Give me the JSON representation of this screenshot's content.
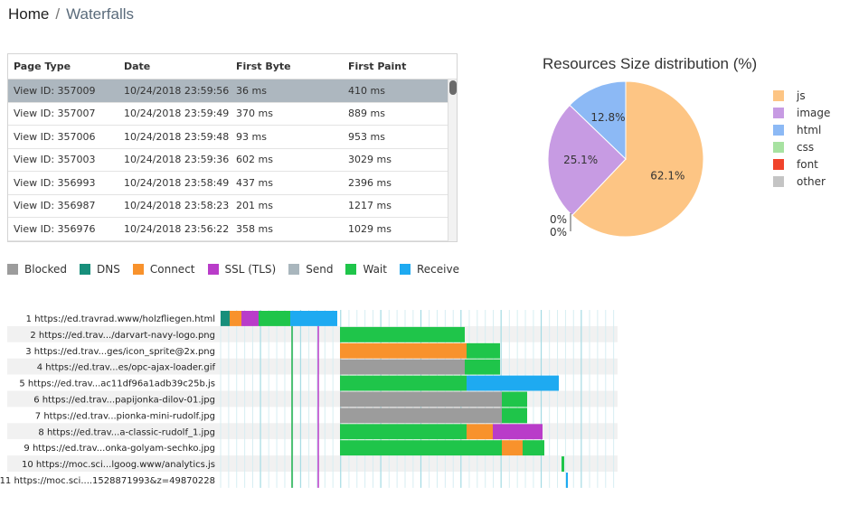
{
  "breadcrumb": {
    "home": "Home",
    "separator": "/",
    "current": "Waterfalls"
  },
  "table": {
    "headers": [
      "Page Type",
      "Date",
      "First Byte",
      "First Paint"
    ],
    "rows": [
      {
        "page": "View ID: 357009",
        "date": "10/24/2018 23:59:56",
        "first_byte": "36 ms",
        "first_paint": "410 ms",
        "selected": true
      },
      {
        "page": "View ID: 357007",
        "date": "10/24/2018 23:59:49",
        "first_byte": "370 ms",
        "first_paint": "889 ms"
      },
      {
        "page": "View ID: 357006",
        "date": "10/24/2018 23:59:48",
        "first_byte": "93 ms",
        "first_paint": "953 ms"
      },
      {
        "page": "View ID: 357003",
        "date": "10/24/2018 23:59:36",
        "first_byte": "602 ms",
        "first_paint": "3029 ms"
      },
      {
        "page": "View ID: 356993",
        "date": "10/24/2018 23:58:49",
        "first_byte": "437 ms",
        "first_paint": "2396 ms"
      },
      {
        "page": "View ID: 356987",
        "date": "10/24/2018 23:58:23",
        "first_byte": "201 ms",
        "first_paint": "1217 ms"
      },
      {
        "page": "View ID: 356976",
        "date": "10/24/2018 23:56:22",
        "first_byte": "358 ms",
        "first_paint": "1029 ms"
      }
    ]
  },
  "chart_data": [
    {
      "type": "pie",
      "title": "Resources Size distribution (%)",
      "legend_position": "right",
      "slices": [
        {
          "label": "js",
          "value": 62.1,
          "text": "62.1%",
          "color": "#fdc584"
        },
        {
          "label": "image",
          "value": 25.1,
          "text": "25.1%",
          "color": "#c79be3"
        },
        {
          "label": "html",
          "value": 12.8,
          "text": "12.8%",
          "color": "#8cb9f5"
        },
        {
          "label": "css",
          "value": 0,
          "text": "0%",
          "color": "#a7e2a1"
        },
        {
          "label": "font",
          "value": 0,
          "text": "0%",
          "color": "#f0432b"
        },
        {
          "label": "other",
          "value": 0,
          "text": "",
          "color": "#c4c4c4"
        }
      ]
    },
    {
      "type": "bar",
      "stacked": true,
      "orientation": "horizontal",
      "phases": [
        {
          "name": "Blocked",
          "color": "#9c9c9c"
        },
        {
          "name": "DNS",
          "color": "#178f7b"
        },
        {
          "name": "Connect",
          "color": "#f8922c"
        },
        {
          "name": "SSL (TLS)",
          "color": "#b93cc9"
        },
        {
          "name": "Send",
          "color": "#a9b6bd"
        },
        {
          "name": "Wait",
          "color": "#1fc54a"
        },
        {
          "name": "Receive",
          "color": "#1eaaf1"
        }
      ],
      "markers": [
        {
          "position": 323,
          "color": "#1fb04a"
        },
        {
          "position": 352,
          "color": "#b93cc9"
        }
      ],
      "requests": [
        {
          "label": "1 https://ed.travrad.www/holzfliegen.html",
          "segments": [
            {
              "phase": "DNS",
              "start": 244,
              "end": 254
            },
            {
              "phase": "Connect",
              "start": 254,
              "end": 267
            },
            {
              "phase": "SSL (TLS)",
              "start": 267,
              "end": 286
            },
            {
              "phase": "Wait",
              "start": 286,
              "end": 321
            },
            {
              "phase": "Receive",
              "start": 321,
              "end": 373
            }
          ]
        },
        {
          "label": "2 https://ed.trav.../darvart-navy-logo.png",
          "segments": [
            {
              "phase": "Wait",
              "start": 376,
              "end": 514
            }
          ]
        },
        {
          "label": "3 https://ed.trav...ges/icon_sprite@2x.png",
          "segments": [
            {
              "phase": "Connect",
              "start": 376,
              "end": 516
            },
            {
              "phase": "Wait",
              "start": 516,
              "end": 553
            }
          ]
        },
        {
          "label": "4 https://ed.trav...es/opc-ajax-loader.gif",
          "segments": [
            {
              "phase": "Blocked",
              "start": 376,
              "end": 514
            },
            {
              "phase": "Wait",
              "start": 514,
              "end": 553
            }
          ]
        },
        {
          "label": "5 https://ed.trav...ac11df96a1adb39c25b.js",
          "segments": [
            {
              "phase": "Wait",
              "start": 376,
              "end": 516
            },
            {
              "phase": "Receive",
              "start": 516,
              "end": 618
            }
          ]
        },
        {
          "label": "6 https://ed.trav...papijonka-dilov-01.jpg",
          "segments": [
            {
              "phase": "Blocked",
              "start": 376,
              "end": 555
            },
            {
              "phase": "Wait",
              "start": 555,
              "end": 583
            }
          ]
        },
        {
          "label": "7 https://ed.trav...pionka-mini-rudolf.jpg",
          "segments": [
            {
              "phase": "Blocked",
              "start": 376,
              "end": 555
            },
            {
              "phase": "Wait",
              "start": 555,
              "end": 583
            }
          ]
        },
        {
          "label": "8 https://ed.trav...a-classic-rudolf_1.jpg",
          "segments": [
            {
              "phase": "Wait",
              "start": 376,
              "end": 516
            },
            {
              "phase": "Connect",
              "start": 516,
              "end": 545
            },
            {
              "phase": "SSL (TLS)",
              "start": 545,
              "end": 600
            }
          ]
        },
        {
          "label": "9 https://ed.trav...onka-golyam-sechko.jpg",
          "segments": [
            {
              "phase": "Wait",
              "start": 376,
              "end": 555
            },
            {
              "phase": "Connect",
              "start": 555,
              "end": 578
            },
            {
              "phase": "Wait",
              "start": 578,
              "end": 602
            }
          ]
        },
        {
          "label": "10 https://moc.sci...lgoog.www/analytics.js",
          "segments": [
            {
              "phase": "Wait",
              "start": 621,
              "end": 624
            }
          ]
        },
        {
          "label": "11 https://moc.sci....1528871993&z=49870228",
          "segments": [
            {
              "phase": "Receive",
              "start": 626,
              "end": 628
            }
          ]
        }
      ]
    }
  ]
}
